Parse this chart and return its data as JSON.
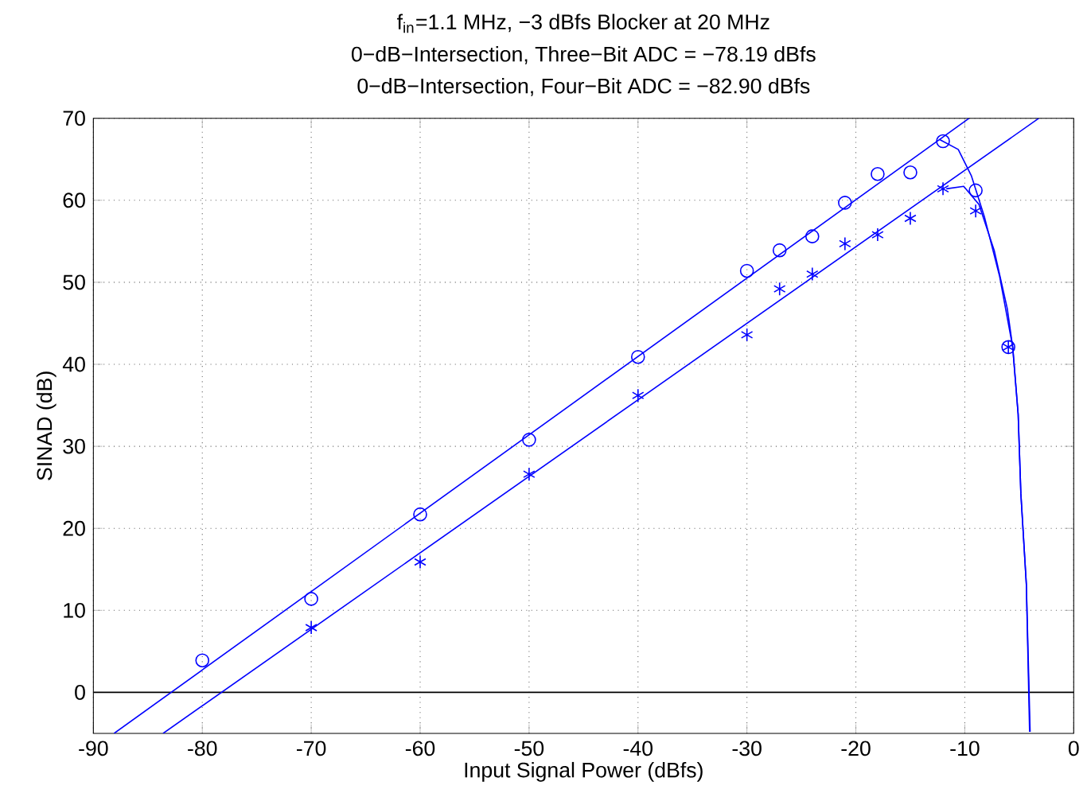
{
  "chart_data": {
    "type": "scatter",
    "title": "f$_{in}$=1.1 MHz, −3 dBfs Blocker at 20 MHz",
    "subtitle": "0−dB−Intersection, Three−Bit ADC = −78.19 dBfs",
    "annotations": [
      "0−dB−Intersection, Four−Bit ADC = −82.90 dBfs"
    ],
    "xlabel": "Input Signal Power (dBfs)",
    "ylabel": "SINAD (dB)",
    "xlim": [
      -90,
      0
    ],
    "ylim": [
      -5,
      70
    ],
    "xticks": [
      -90,
      -80,
      -70,
      -60,
      -50,
      -40,
      -30,
      -20,
      -10,
      0
    ],
    "yticks": [
      0,
      10,
      20,
      30,
      40,
      50,
      60,
      70
    ],
    "grid": true,
    "ref_lines": [
      {
        "axis": "y",
        "value": 0,
        "color": "#000000",
        "line_style": "solid"
      }
    ],
    "series": [
      {
        "marker": "circle",
        "color": "#0000ff",
        "x": [
          -80,
          -70,
          -60,
          -50,
          -40,
          -30,
          -27,
          -24,
          -21,
          -18,
          -15,
          -12,
          -9,
          -6
        ],
        "values": [
          3.9,
          11.4,
          21.7,
          30.8,
          40.9,
          51.4,
          53.9,
          55.6,
          59.7,
          63.2,
          63.4,
          67.2,
          61.2,
          42.1
        ]
      },
      {
        "marker": "cross",
        "color": "#0000ff",
        "x": [
          -70,
          -60,
          -50,
          -40,
          -30,
          -27,
          -24,
          -21,
          -18,
          -15,
          -12,
          -9,
          -6
        ],
        "values": [
          7.9,
          15.9,
          26.6,
          36.2,
          43.6,
          49.2,
          51.0,
          54.7,
          55.8,
          57.8,
          61.4,
          58.7,
          42.1
        ]
      },
      {
        "type": "line",
        "marker": "none",
        "line_style": "solid",
        "color": "#0000ff",
        "x": [
          -88.1,
          -9.6
        ],
        "values": [
          -5,
          70
        ]
      },
      {
        "type": "line",
        "marker": "none",
        "line_style": "solid",
        "color": "#0000ff",
        "x": [
          -83.6,
          -3.2
        ],
        "values": [
          -5,
          70
        ]
      },
      {
        "type": "line",
        "marker": "none",
        "line_style": "solid",
        "color": "#0000ff",
        "x": [
          -12.3,
          -10.6,
          -9.4,
          -8.2,
          -6.8,
          -5.6,
          -5.1,
          -4.85,
          -4.35,
          -4.0
        ],
        "values": [
          67.4,
          66.2,
          63.0,
          58.0,
          50.7,
          42.1,
          33.9,
          24.2,
          13.2,
          -4.8
        ]
      },
      {
        "type": "line",
        "marker": "none",
        "line_style": "solid",
        "color": "#0000ff",
        "x": [
          -11.7,
          -10.1,
          -8.7,
          -7.3,
          -6.1,
          -5.6,
          -5.1,
          -4.85,
          -4.35,
          -4.05
        ],
        "values": [
          61.4,
          61.7,
          59.5,
          53.9,
          46.8,
          42.1,
          33.9,
          24.2,
          13.2,
          -4.8
        ]
      }
    ]
  }
}
